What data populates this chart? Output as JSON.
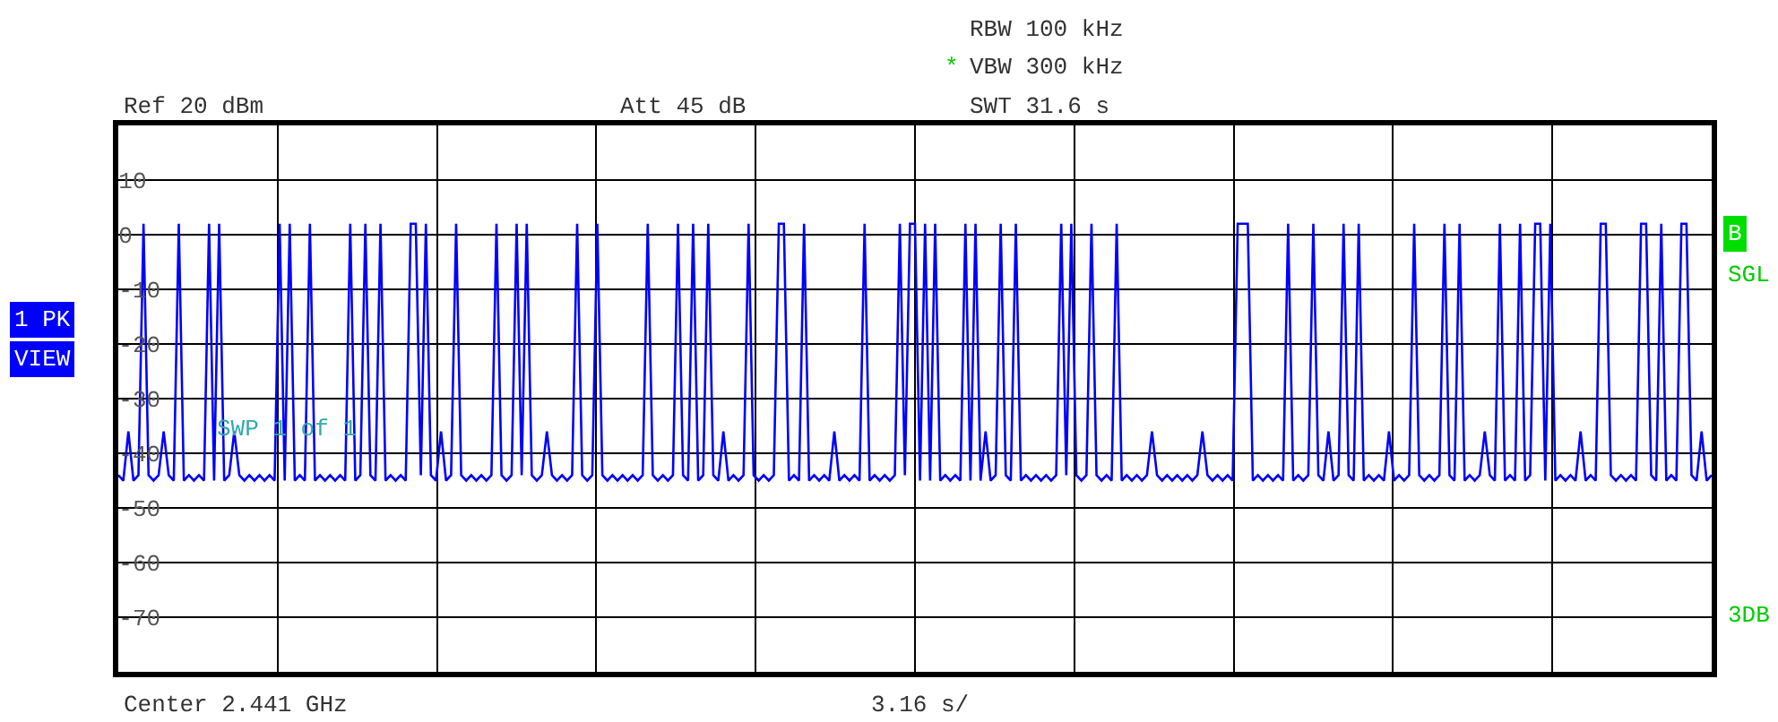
{
  "chart_data": {
    "type": "line",
    "categories": [
      null,
      null,
      null,
      null,
      null,
      null,
      null,
      null,
      null,
      null,
      null,
      null,
      null,
      null,
      null,
      null,
      null,
      null,
      null,
      null,
      null,
      null,
      null,
      null,
      null,
      null,
      null,
      null,
      null,
      null,
      null,
      null,
      null,
      null,
      null,
      null,
      null,
      null,
      null,
      null,
      null,
      null,
      null,
      null,
      null,
      null,
      null,
      null,
      null,
      null,
      null,
      null,
      null,
      null,
      null,
      null,
      null,
      null,
      null,
      null,
      null,
      null,
      null,
      null,
      null,
      null,
      null,
      null,
      null,
      null,
      null,
      null,
      null,
      null,
      null,
      null,
      null,
      null,
      null,
      null,
      null,
      null,
      null,
      null,
      null,
      null,
      null,
      null,
      null,
      null,
      null,
      null,
      null,
      null,
      null,
      null,
      null,
      null,
      null,
      null,
      null,
      null,
      null,
      null,
      null,
      null,
      null,
      null,
      null,
      null,
      null,
      null,
      null,
      null,
      null,
      null,
      null,
      null,
      null,
      null,
      null,
      null,
      null,
      null,
      null,
      null,
      null,
      null,
      null,
      null,
      null,
      null,
      null,
      null,
      null,
      null,
      null,
      null,
      null,
      null,
      null,
      null,
      null,
      null,
      null,
      null,
      null,
      null,
      null,
      null,
      null,
      null,
      null,
      null,
      null,
      null,
      null,
      null,
      null,
      null,
      null,
      null,
      null,
      null,
      null,
      null,
      null,
      null,
      null,
      null,
      null,
      null,
      null,
      null,
      null,
      null,
      null,
      null,
      null,
      null,
      null,
      null,
      null,
      null,
      null,
      null,
      null,
      null,
      null,
      null,
      null,
      null,
      null,
      null,
      null,
      null,
      null,
      null,
      null,
      null,
      null,
      null,
      null,
      null,
      null,
      null,
      null,
      null,
      null,
      null,
      null,
      null,
      null,
      null,
      null,
      null,
      null,
      null,
      null,
      null,
      null,
      null,
      null,
      null,
      null,
      null,
      null,
      null,
      null,
      null,
      null,
      null,
      null,
      null,
      null,
      null,
      null,
      null,
      null,
      null,
      null,
      null,
      null,
      null,
      null,
      null,
      null,
      null,
      null,
      null,
      null,
      null,
      null,
      null,
      null,
      null,
      null,
      null,
      null,
      null,
      null,
      null,
      null,
      null,
      null,
      null,
      null,
      null,
      null,
      null,
      null,
      null,
      null,
      null,
      null,
      null,
      null,
      null,
      null,
      null,
      null,
      null,
      null,
      null,
      null,
      null,
      null,
      null,
      null,
      null,
      null,
      null,
      null,
      null,
      null,
      null,
      null,
      null,
      null,
      null,
      null,
      null,
      null,
      null,
      null,
      null,
      null,
      null,
      null,
      null,
      null,
      null,
      null,
      null,
      null,
      null,
      null
    ],
    "ylim": [
      -80,
      20
    ],
    "yticks": [
      -70,
      -60,
      -50,
      -40,
      -30,
      -20,
      -10,
      0,
      10
    ],
    "tick_labels": "y",
    "grid": true,
    "marker": "none",
    "line_style": "solid",
    "series": [
      {
        "color": "#0000ff",
        "values": [
          -44,
          -45,
          -36,
          -45,
          -44,
          2,
          -44,
          -45,
          -44,
          -36,
          -44,
          -45,
          2,
          -45,
          -44,
          -45,
          -44,
          -45,
          2,
          -45,
          2,
          -45,
          -44,
          -36,
          -44,
          -45,
          -44,
          -45,
          -44,
          -45,
          -44,
          -45,
          2,
          -45,
          2,
          -45,
          -44,
          -45,
          2,
          -45,
          -44,
          -45,
          -44,
          -45,
          -44,
          -45,
          2,
          -45,
          -44,
          2,
          -44,
          -45,
          2,
          -45,
          -44,
          -45,
          -44,
          -45,
          2,
          2,
          -44,
          2,
          -44,
          -45,
          -36,
          -45,
          -44,
          2,
          -44,
          -45,
          -44,
          -45,
          -44,
          -45,
          -44,
          2,
          -44,
          -45,
          -44,
          2,
          -44,
          2,
          -44,
          -45,
          -44,
          -36,
          -44,
          -45,
          -44,
          -45,
          -44,
          2,
          -44,
          -45,
          -44,
          2,
          -44,
          -45,
          -44,
          -45,
          -44,
          -45,
          -44,
          -45,
          -44,
          2,
          -44,
          -45,
          -44,
          -45,
          -44,
          2,
          -44,
          -45,
          2,
          -45,
          -44,
          2,
          -44,
          -45,
          -36,
          -45,
          -44,
          -45,
          -44,
          2,
          -44,
          -45,
          -44,
          -45,
          -44,
          2,
          2,
          -45,
          -44,
          -45,
          2,
          -45,
          -44,
          -45,
          -44,
          -45,
          -36,
          -45,
          -44,
          -45,
          -44,
          -45,
          2,
          -45,
          -44,
          -45,
          -44,
          -45,
          -44,
          2,
          -44,
          2,
          2,
          -45,
          2,
          -45,
          2,
          -45,
          -44,
          -45,
          -44,
          -45,
          2,
          -45,
          2,
          -45,
          -36,
          -45,
          -44,
          2,
          -44,
          -45,
          2,
          -45,
          -44,
          -45,
          -44,
          -45,
          -44,
          -45,
          -44,
          2,
          -44,
          2,
          -44,
          -45,
          -44,
          2,
          -44,
          -45,
          -44,
          -45,
          2,
          -45,
          -44,
          -45,
          -44,
          -45,
          -44,
          -36,
          -44,
          -45,
          -44,
          -45,
          -44,
          -45,
          -44,
          -45,
          -44,
          -36,
          -44,
          -45,
          -44,
          -45,
          -44,
          -45,
          2,
          2,
          2,
          -45,
          -44,
          -45,
          -44,
          -45,
          -44,
          -45,
          2,
          -45,
          -44,
          -45,
          -44,
          2,
          -44,
          -45,
          -36,
          -45,
          -44,
          2,
          -44,
          -45,
          2,
          -45,
          -44,
          -45,
          -44,
          -45,
          -36,
          -45,
          -44,
          -45,
          -44,
          2,
          -44,
          -45,
          -44,
          -45,
          -44,
          2,
          -44,
          -45,
          2,
          -45,
          -44,
          -45,
          -44,
          -36,
          -44,
          -45,
          2,
          -45,
          -44,
          -45,
          2,
          -45,
          -44,
          2,
          2,
          -45,
          2,
          -45,
          -44,
          -45,
          -44,
          -45,
          -36,
          -45,
          -44,
          -45,
          2,
          2,
          -44,
          -45,
          -44,
          -45,
          -44,
          -45,
          2,
          2,
          -44,
          -45,
          2,
          -45,
          -44,
          -45,
          2,
          2,
          -44,
          -45,
          -36,
          -45,
          -44
        ]
      }
    ],
    "annotations": [
      "RBW 100 kHz",
      "*",
      "VBW 300 kHz",
      "Ref 20 dBm",
      "Att 45 dB",
      "SWT 31.6 s",
      "1 PK",
      "VIEW",
      "B",
      "SGL",
      "3DB",
      "SWP 1 of 1",
      "Center 2.441 GHz",
      "3.16 s/"
    ]
  }
}
